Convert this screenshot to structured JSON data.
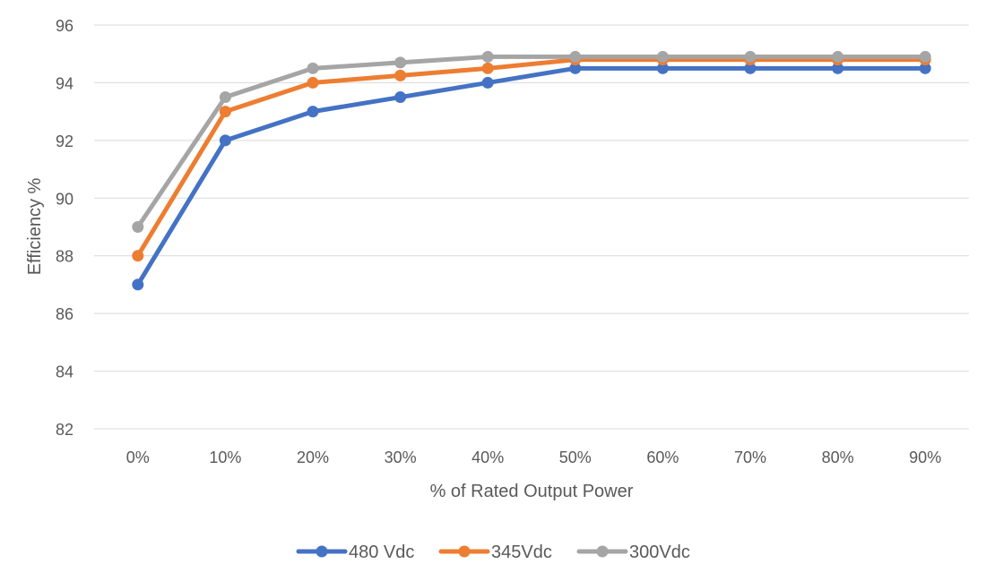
{
  "chart_data": {
    "type": "line",
    "title": "",
    "xlabel": "% of Rated Output Power",
    "ylabel": "Efficiency %",
    "categories": [
      "0%",
      "10%",
      "20%",
      "30%",
      "40%",
      "50%",
      "60%",
      "70%",
      "80%",
      "90%"
    ],
    "ylim": [
      82,
      96
    ],
    "yticks": [
      "82",
      "84",
      "86",
      "88",
      "90",
      "92",
      "94",
      "96"
    ],
    "grid": true,
    "legend_position": "bottom",
    "series": [
      {
        "name": "480 Vdc",
        "color": "#4472C4",
        "values": [
          87,
          92,
          93,
          93.5,
          94,
          94.5,
          94.5,
          94.5,
          94.5,
          94.5
        ]
      },
      {
        "name": "345Vdc",
        "color": "#ED7D31",
        "values": [
          88,
          93,
          94,
          94.25,
          94.5,
          94.8,
          94.8,
          94.8,
          94.8,
          94.8
        ]
      },
      {
        "name": "300Vdc",
        "color": "#A5A5A5",
        "values": [
          89,
          93.5,
          94.5,
          94.7,
          94.9,
          94.9,
          94.9,
          94.9,
          94.9,
          94.9
        ]
      }
    ]
  }
}
